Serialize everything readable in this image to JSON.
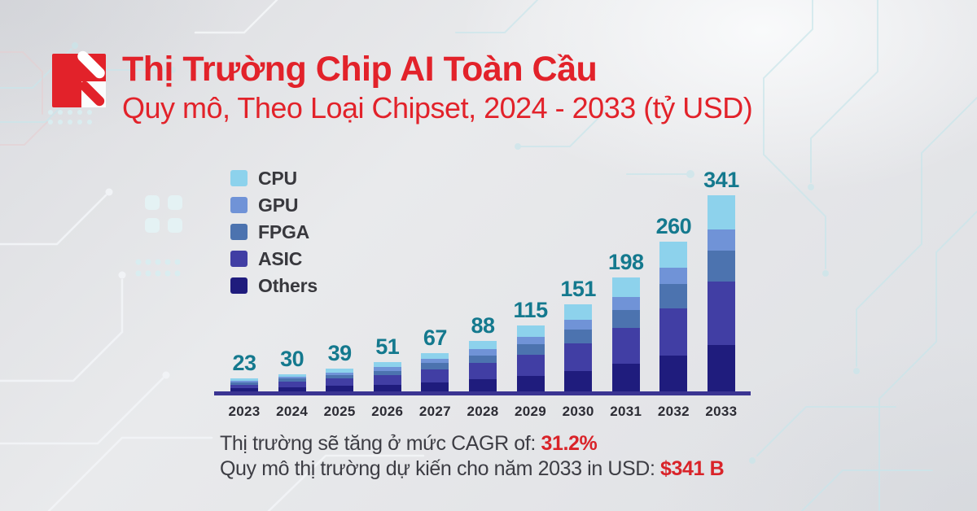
{
  "header": {
    "title": "Thị Trường Chip AI Toàn Cầu",
    "subtitle": "Quy mô, Theo Loại Chipset, 2024 - 2033 (tỷ USD)"
  },
  "logo": {
    "icon": "brand-logo-mark",
    "color": "#E2222A"
  },
  "chart_data": {
    "type": "bar",
    "stacked": true,
    "title": "Thị Trường Chip AI Toàn Cầu",
    "subtitle": "Quy mô, Theo Loại Chipset, 2024 - 2033 (tỷ USD)",
    "unit": "tỷ USD (billion USD)",
    "categories": [
      "2023",
      "2024",
      "2025",
      "2026",
      "2027",
      "2028",
      "2029",
      "2030",
      "2031",
      "2032",
      "2033"
    ],
    "totals": [
      23,
      30,
      39,
      51,
      67,
      88,
      115,
      151,
      198,
      260,
      341
    ],
    "series": [
      {
        "name": "CPU",
        "color": "#8DD2EC",
        "values": [
          4,
          5,
          7,
          9,
          11,
          15,
          20,
          26,
          34,
          45,
          59
        ]
      },
      {
        "name": "GPU",
        "color": "#7093D7",
        "values": [
          3,
          3,
          4,
          6,
          7,
          10,
          13,
          17,
          22,
          28,
          37
        ]
      },
      {
        "name": "FPGA",
        "color": "#4C73AF",
        "values": [
          4,
          5,
          6,
          8,
          11,
          14,
          18,
          24,
          31,
          42,
          54
        ]
      },
      {
        "name": "ASIC",
        "color": "#413EA4",
        "values": [
          7,
          10,
          12,
          16,
          22,
          28,
          37,
          48,
          63,
          83,
          110
        ]
      },
      {
        "name": "Others",
        "color": "#1F1C7D",
        "values": [
          5,
          7,
          10,
          12,
          16,
          21,
          27,
          36,
          48,
          62,
          81
        ]
      }
    ],
    "legend_position": "top-left",
    "grid": false,
    "ylim": [
      0,
      341
    ],
    "value_label_color": "#14798E",
    "axis_line_color": "#3A3492"
  },
  "footer": {
    "line1_label": "Thị trường sẽ tăng ở mức CAGR of: ",
    "line1_value": "31.2%",
    "line2_label": "Quy mô thị trường dự kiến cho năm 2033 in USD: ",
    "line2_value": "$341 B"
  },
  "colors": {
    "brand_red": "#E2222A",
    "footer_value_red": "#D92329",
    "value_label_teal": "#14798E",
    "axis_line_indigo": "#3A3492",
    "text_dark": "#3D3D44",
    "circuit_trace": "#C9E6EB"
  }
}
